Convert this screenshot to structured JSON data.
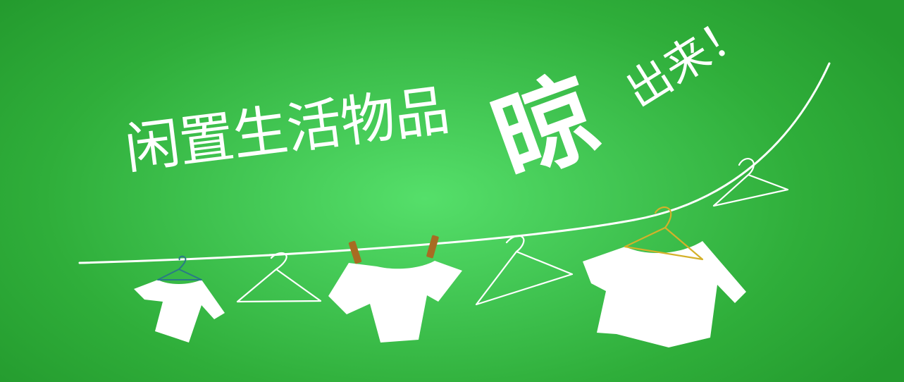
{
  "banner": {
    "headline": "闲置生活物品",
    "big_char": "晾",
    "tail": "出来！",
    "background_colors": [
      "#55df6a",
      "#42c653",
      "#2fae3a",
      "#249b2e"
    ],
    "icons": [
      "clothesline-icon",
      "tshirt-icon",
      "hanger-icon",
      "clothespin-icon"
    ]
  }
}
